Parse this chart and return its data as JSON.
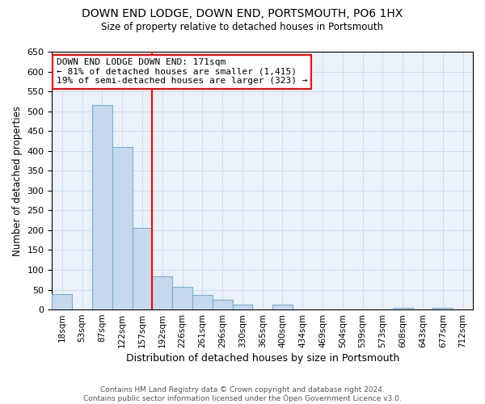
{
  "title": "DOWN END LODGE, DOWN END, PORTSMOUTH, PO6 1HX",
  "subtitle": "Size of property relative to detached houses in Portsmouth",
  "xlabel": "Distribution of detached houses by size in Portsmouth",
  "ylabel": "Number of detached properties",
  "categories": [
    "18sqm",
    "53sqm",
    "87sqm",
    "122sqm",
    "157sqm",
    "192sqm",
    "226sqm",
    "261sqm",
    "296sqm",
    "330sqm",
    "365sqm",
    "400sqm",
    "434sqm",
    "469sqm",
    "504sqm",
    "539sqm",
    "573sqm",
    "608sqm",
    "643sqm",
    "677sqm",
    "712sqm"
  ],
  "values": [
    38,
    0,
    515,
    410,
    205,
    83,
    57,
    37,
    25,
    12,
    0,
    12,
    0,
    0,
    0,
    0,
    0,
    5,
    0,
    5,
    0
  ],
  "bar_color": "#c5d8ec",
  "bar_edge_color": "#7aaed4",
  "vline_x": 4.5,
  "annotation_line1": "DOWN END LODGE DOWN END: 171sqm",
  "annotation_line2": "← 81% of detached houses are smaller (1,415)",
  "annotation_line3": "19% of semi-detached houses are larger (323) →",
  "annotation_box_edge": "red",
  "vertical_line_color": "red",
  "ylim": [
    0,
    650
  ],
  "yticks": [
    0,
    50,
    100,
    150,
    200,
    250,
    300,
    350,
    400,
    450,
    500,
    550,
    600,
    650
  ],
  "footer_line1": "Contains HM Land Registry data © Crown copyright and database right 2024.",
  "footer_line2": "Contains public sector information licensed under the Open Government Licence v3.0.",
  "bg_color": "#eaf1f8",
  "grid_color": "#c8ddf0"
}
